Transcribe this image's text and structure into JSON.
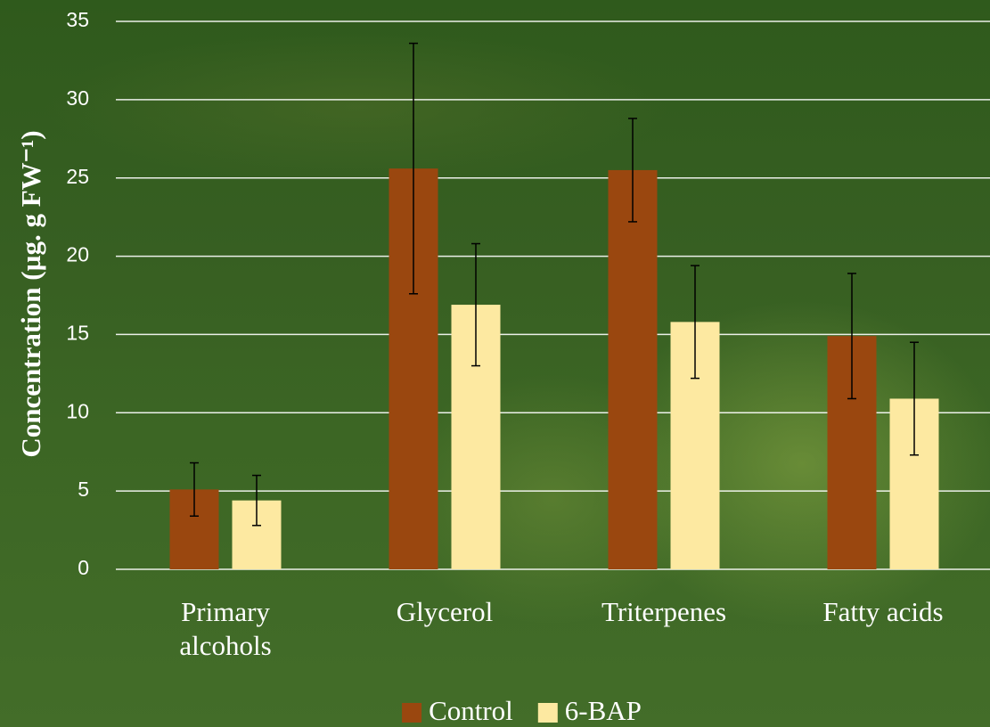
{
  "chart_data": {
    "type": "bar",
    "ylabel": "Concentration (µg. g FW⁻¹)",
    "categories": [
      "Primary alcohols",
      "Glycerol",
      "Triterpenes",
      "Fatty acids"
    ],
    "series": [
      {
        "name": "Control",
        "color": "#9a470f",
        "values": [
          5.1,
          25.6,
          25.5,
          14.9
        ],
        "errors": [
          1.7,
          8.0,
          3.3,
          4.0
        ]
      },
      {
        "name": "6-BAP",
        "color": "#fde9a1",
        "values": [
          4.4,
          16.9,
          15.8,
          10.9
        ],
        "errors": [
          1.6,
          3.9,
          3.6,
          3.6
        ]
      }
    ],
    "ylim": [
      0,
      35
    ],
    "yticks": [
      0,
      5,
      10,
      15,
      20,
      25,
      30,
      35
    ],
    "grid": true,
    "legend": "bottom"
  }
}
